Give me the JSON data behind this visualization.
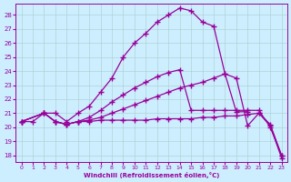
{
  "bg_color": "#cceeff",
  "line_color": "#990099",
  "grid_color": "#aacccc",
  "xlabel": "Windchill (Refroidissement éolien,°C)",
  "xlim": [
    -0.5,
    23.5
  ],
  "ylim": [
    17.5,
    28.8
  ],
  "yticks": [
    18,
    19,
    20,
    21,
    22,
    23,
    24,
    25,
    26,
    27,
    28
  ],
  "xticks": [
    0,
    1,
    2,
    3,
    4,
    5,
    6,
    7,
    8,
    9,
    10,
    11,
    12,
    13,
    14,
    15,
    16,
    17,
    18,
    19,
    20,
    21,
    22,
    23
  ],
  "curve1_x": [
    0,
    1,
    2,
    3,
    4,
    5,
    6,
    7,
    8,
    9,
    10,
    11,
    12,
    13,
    14,
    15,
    16,
    17,
    18,
    19,
    20,
    21,
    22,
    23
  ],
  "curve1_y": [
    20.4,
    20.4,
    21.0,
    21.0,
    20.4,
    21.0,
    21.5,
    22.5,
    23.5,
    25.0,
    26.0,
    26.7,
    27.5,
    28.0,
    28.5,
    28.3,
    27.5,
    27.2,
    23.8,
    23.5,
    20.1,
    21.0,
    20.1,
    17.8
  ],
  "curve2_x": [
    0,
    2,
    3,
    4,
    5,
    6,
    7,
    8,
    9,
    10,
    11,
    12,
    13,
    14,
    15,
    16,
    17,
    18,
    19,
    20,
    21,
    22,
    23
  ],
  "curve2_y": [
    20.4,
    21.0,
    20.4,
    20.2,
    20.4,
    20.7,
    21.2,
    21.8,
    22.3,
    22.8,
    23.2,
    23.6,
    23.9,
    24.1,
    21.2,
    21.2,
    21.2,
    21.2,
    21.2,
    21.2,
    21.2,
    20.0,
    18.0
  ],
  "curve3_x": [
    0,
    2,
    3,
    4,
    5,
    6,
    7,
    8,
    9,
    10,
    11,
    12,
    13,
    14,
    15,
    16,
    17,
    18,
    19,
    20
  ],
  "curve3_y": [
    20.4,
    21.0,
    20.4,
    20.2,
    20.4,
    20.5,
    20.7,
    21.0,
    21.3,
    21.6,
    21.9,
    22.2,
    22.5,
    22.8,
    23.0,
    23.2,
    23.5,
    23.8,
    21.1,
    21.1
  ],
  "curve4_x": [
    0,
    2,
    3,
    4,
    5,
    6,
    7,
    8,
    9,
    10,
    11,
    12,
    13,
    14,
    15,
    16,
    17,
    18,
    19,
    20,
    21,
    22,
    23
  ],
  "curve4_y": [
    20.4,
    21.0,
    20.4,
    20.2,
    20.4,
    20.4,
    20.5,
    20.5,
    20.5,
    20.5,
    20.5,
    20.6,
    20.6,
    20.6,
    20.6,
    20.7,
    20.7,
    20.8,
    20.8,
    20.9,
    21.0,
    20.2,
    18.0
  ]
}
